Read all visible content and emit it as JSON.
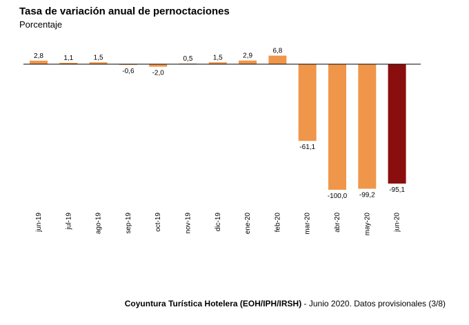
{
  "header": {
    "title": "Tasa de variación anual de pernoctaciones",
    "subtitle": "Porcentaje"
  },
  "footer": {
    "source_bold": "Coyuntura Turística Hotelera (EOH/IPH/IRSH)",
    "source_rest": " - Junio 2020. Datos provisionales (3/8)"
  },
  "colors": {
    "bar": "#F0964A",
    "highlight": "#8B0E0E"
  },
  "chart_data": {
    "type": "bar",
    "title": "Tasa de variación anual de pernoctaciones",
    "ylabel": "Porcentaje",
    "categories": [
      "jun-19",
      "jul-19",
      "ago-19",
      "sep-19",
      "oct-19",
      "nov-19",
      "dic-19",
      "ene-20",
      "feb-20",
      "mar-20",
      "abr-20",
      "may-20",
      "jun-20"
    ],
    "values": [
      2.8,
      1.1,
      1.5,
      -0.6,
      -2.0,
      0.5,
      1.5,
      2.9,
      6.8,
      -61.1,
      -100.0,
      -99.2,
      -95.1
    ],
    "labels": [
      "2,8",
      "1,1",
      "1,5",
      "-0,6",
      "-2,0",
      "0,5",
      "1,5",
      "2,9",
      "6,8",
      "-61,1",
      "-100,0",
      "-99,2",
      "-95,1"
    ],
    "highlight_index": 12,
    "ylim": [
      -100,
      10
    ],
    "grid": false,
    "legend": "none"
  }
}
